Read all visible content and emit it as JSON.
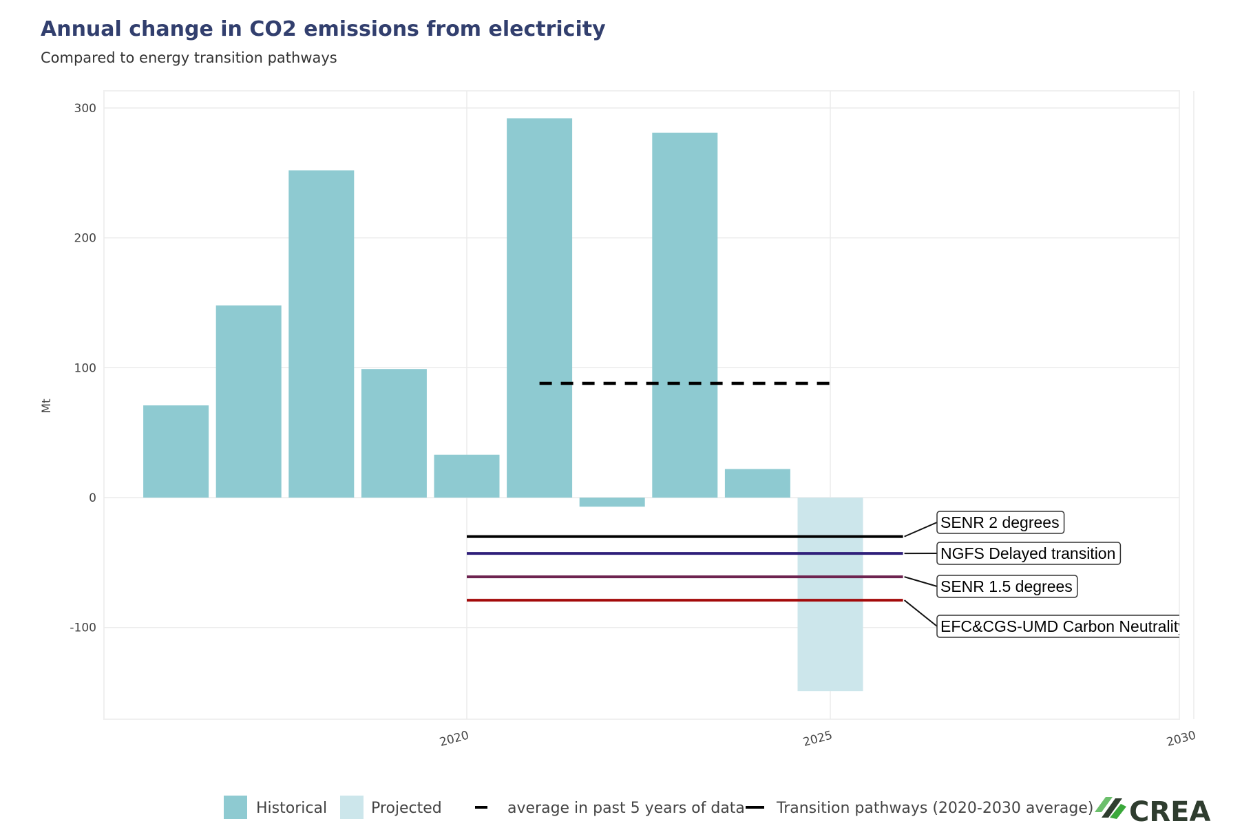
{
  "chart_data": {
    "type": "bar",
    "title": "Annual change in CO2 emissions from electricity",
    "subtitle": "Compared to energy transition pathways",
    "xlabel": "",
    "ylabel": "Mt",
    "xlim": [
      2015.5,
      2030
    ],
    "ylim": [
      -165,
      310
    ],
    "x_ticks": [
      2020,
      2025,
      2030
    ],
    "y_ticks": [
      300,
      200,
      100,
      0,
      -100
    ],
    "grid": true,
    "series": [
      {
        "name": "Historical",
        "color": "#8ecad1",
        "x": [
          2016,
          2017,
          2018,
          2019,
          2020,
          2021,
          2022,
          2023,
          2024
        ],
        "values": [
          71,
          148,
          252,
          99,
          33,
          292,
          -7,
          281,
          22
        ]
      },
      {
        "name": "Projected",
        "color": "#cce6eb",
        "x": [
          2025
        ],
        "values": [
          -149
        ]
      }
    ],
    "average_line": {
      "name": "average in past 5 years of data",
      "from": 2021,
      "to": 2025,
      "value": 88,
      "color": "#000000"
    },
    "pathways": [
      {
        "name": "SENR 2 degrees",
        "value": -30,
        "from": 2020,
        "to": 2026,
        "color": "#000000"
      },
      {
        "name": "NGFS Delayed transition",
        "value": -43,
        "from": 2020,
        "to": 2026,
        "color": "#2f1f7a"
      },
      {
        "name": "SENR 1.5 degrees",
        "value": -61,
        "from": 2020,
        "to": 2026,
        "color": "#6e2450"
      },
      {
        "name": "EFC&CGS-UMD Carbon Neutrality",
        "value": -79,
        "from": 2020,
        "to": 2026,
        "color": "#a30a0a"
      }
    ],
    "legend": {
      "placement": "bottom",
      "items": [
        "Historical",
        "Projected",
        "average in past 5 years of data",
        "Transition pathways (2020-2030 average)"
      ]
    }
  },
  "logo": {
    "text": "CREA"
  }
}
